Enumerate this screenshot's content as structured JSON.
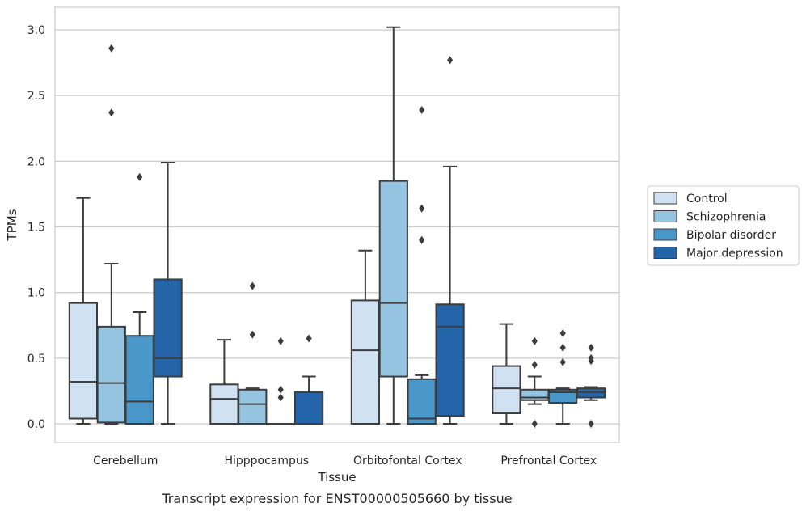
{
  "caption": "Transcript expression for ENST00000505660 by tissue",
  "chart_data": {
    "type": "box",
    "xlabel": "Tissue",
    "ylabel": "TPMs",
    "ylim": [
      -0.15,
      3.18
    ],
    "yticks": [
      0.0,
      0.5,
      1.0,
      1.5,
      2.0,
      2.5,
      3.0
    ],
    "ytick_labels": [
      "0.0",
      "0.5",
      "1.0",
      "1.5",
      "2.0",
      "2.5",
      "3.0"
    ],
    "grid": "horizontal",
    "legend_position": "right",
    "categories": [
      "Cerebellum",
      "Hipppocampus",
      "Orbitofontal Cortex",
      "Prefrontal Cortex"
    ],
    "series": [
      {
        "name": "Control",
        "color": "#d0e1f2",
        "boxes": [
          {
            "whislo": 0.0,
            "q1": 0.04,
            "med": 0.32,
            "q3": 0.92,
            "whishi": 1.72,
            "fliers": []
          },
          {
            "whislo": 0.0,
            "q1": 0.0,
            "med": 0.19,
            "q3": 0.3,
            "whishi": 0.64,
            "fliers": []
          },
          {
            "whislo": 0.0,
            "q1": 0.0,
            "med": 0.56,
            "q3": 0.94,
            "whishi": 1.32,
            "fliers": []
          },
          {
            "whislo": 0.0,
            "q1": 0.08,
            "med": 0.27,
            "q3": 0.44,
            "whishi": 0.76,
            "fliers": []
          }
        ]
      },
      {
        "name": "Schizophrenia",
        "color": "#94c4df",
        "boxes": [
          {
            "whislo": 0.0,
            "q1": 0.01,
            "med": 0.31,
            "q3": 0.74,
            "whishi": 1.22,
            "fliers": [
              2.37,
              2.86
            ]
          },
          {
            "whislo": 0.0,
            "q1": 0.0,
            "med": 0.15,
            "q3": 0.26,
            "whishi": 0.27,
            "fliers": [
              0.68,
              1.05
            ]
          },
          {
            "whislo": 0.0,
            "q1": 0.36,
            "med": 0.92,
            "q3": 1.85,
            "whishi": 3.02,
            "fliers": []
          },
          {
            "whislo": 0.15,
            "q1": 0.18,
            "med": 0.2,
            "q3": 0.26,
            "whishi": 0.36,
            "fliers": [
              0.0,
              0.45,
              0.63
            ]
          }
        ]
      },
      {
        "name": "Bipolar disorder",
        "color": "#4a98c9",
        "boxes": [
          {
            "whislo": 0.0,
            "q1": 0.0,
            "med": 0.17,
            "q3": 0.67,
            "whishi": 0.85,
            "fliers": [
              1.88
            ]
          },
          {
            "whislo": 0.0,
            "q1": 0.0,
            "med": 0.0,
            "q3": 0.0,
            "whishi": 0.0,
            "fliers": [
              0.2,
              0.26,
              0.63
            ]
          },
          {
            "whislo": 0.0,
            "q1": 0.0,
            "med": 0.04,
            "q3": 0.34,
            "whishi": 0.37,
            "fliers": [
              1.4,
              1.64,
              2.39
            ]
          },
          {
            "whislo": 0.0,
            "q1": 0.16,
            "med": 0.24,
            "q3": 0.26,
            "whishi": 0.27,
            "fliers": [
              0.47,
              0.58,
              0.69
            ]
          }
        ]
      },
      {
        "name": "Major depression",
        "color": "#2464a8",
        "boxes": [
          {
            "whislo": 0.0,
            "q1": 0.36,
            "med": 0.5,
            "q3": 1.1,
            "whishi": 1.99,
            "fliers": []
          },
          {
            "whislo": 0.0,
            "q1": 0.0,
            "med": 0.0,
            "q3": 0.24,
            "whishi": 0.36,
            "fliers": [
              0.65
            ]
          },
          {
            "whislo": 0.0,
            "q1": 0.06,
            "med": 0.74,
            "q3": 0.91,
            "whishi": 1.96,
            "fliers": [
              2.77
            ]
          },
          {
            "whislo": 0.18,
            "q1": 0.2,
            "med": 0.24,
            "q3": 0.27,
            "whishi": 0.28,
            "fliers": [
              0.0,
              0.48,
              0.5,
              0.58
            ]
          }
        ]
      }
    ]
  }
}
